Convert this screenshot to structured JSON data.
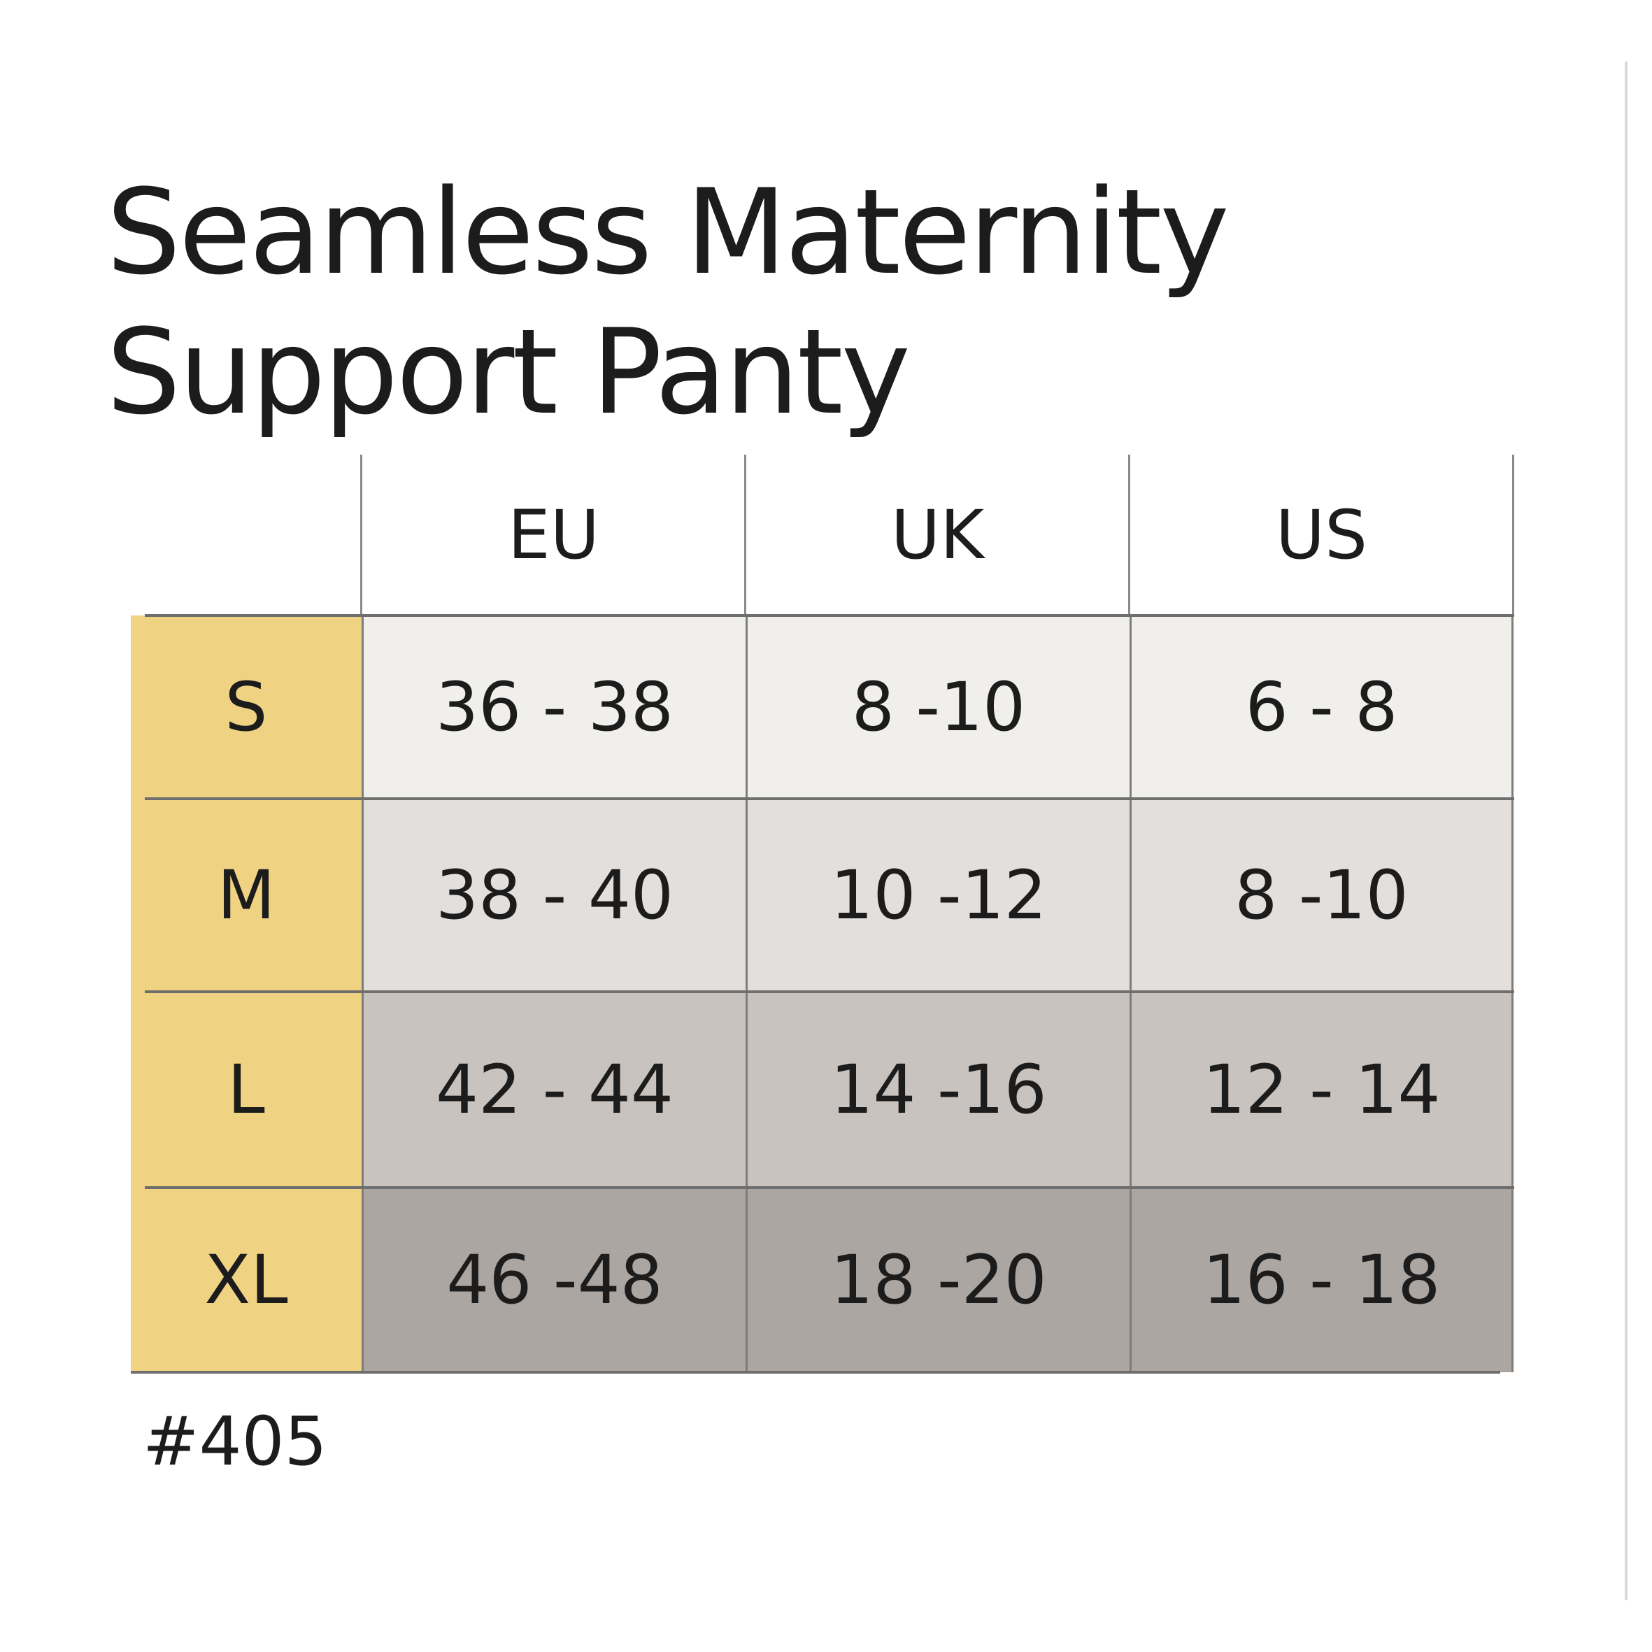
{
  "title": {
    "line1": "Seamless Maternity",
    "line2": "Support Panty"
  },
  "table": {
    "columns": [
      "EU",
      "UK",
      "US"
    ],
    "rows": [
      {
        "size": "S",
        "values": [
          "36 - 38",
          "8 -10",
          "6 - 8"
        ]
      },
      {
        "size": "M",
        "values": [
          "38 - 40",
          "10 -12",
          "8 -10"
        ]
      },
      {
        "size": "L",
        "values": [
          "42 - 44",
          "14 -16",
          "12 - 14"
        ]
      },
      {
        "size": "XL",
        "values": [
          "46 -48",
          "18 -20",
          "16 - 18"
        ]
      }
    ],
    "colors": {
      "size_column": "#f0d283",
      "row_backgrounds": [
        "#f1efec",
        "#e3dfdc",
        "#c9c3bf",
        "#aca6a2"
      ],
      "grid_lines": "#7d7d7d"
    }
  },
  "footnote": "#405"
}
